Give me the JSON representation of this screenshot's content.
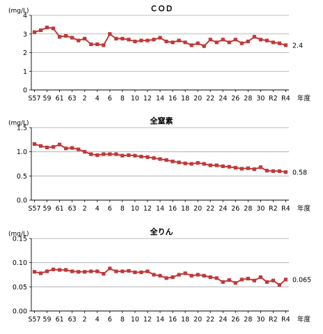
{
  "chart_data": [
    {
      "type": "line",
      "title": "ＣＯＤ",
      "ylabel": "(mg/L)",
      "xlabel": "年度",
      "ylim": [
        0,
        4
      ],
      "yticks": [
        0,
        1,
        2,
        3,
        4
      ],
      "ytick_labels": [
        "0",
        "1",
        "2",
        "3",
        "4"
      ],
      "grid": true,
      "end_label": "2.4",
      "series": [
        {
          "color": "#c0393a",
          "values": [
            3.1,
            3.2,
            3.35,
            3.3,
            2.85,
            2.9,
            2.8,
            2.65,
            2.75,
            2.45,
            2.45,
            2.4,
            3.0,
            2.75,
            2.75,
            2.7,
            2.6,
            2.65,
            2.65,
            2.7,
            2.8,
            2.6,
            2.55,
            2.65,
            2.55,
            2.4,
            2.5,
            2.35,
            2.7,
            2.55,
            2.7,
            2.55,
            2.7,
            2.5,
            2.6,
            2.85,
            2.7,
            2.65,
            2.55,
            2.5,
            2.4
          ]
        }
      ]
    },
    {
      "type": "line",
      "title": "全窒素",
      "ylabel": "(mg/L)",
      "xlabel": "年度",
      "ylim": [
        0,
        1.5
      ],
      "yticks": [
        0,
        0.5,
        1.0,
        1.5
      ],
      "ytick_labels": [
        "0.0",
        "0.5",
        "1.0",
        "1.5"
      ],
      "grid": true,
      "end_label": "0.58",
      "series": [
        {
          "color": "#c0393a",
          "values": [
            1.16,
            1.12,
            1.09,
            1.1,
            1.15,
            1.07,
            1.08,
            1.05,
            1.0,
            0.95,
            0.93,
            0.95,
            0.95,
            0.95,
            0.92,
            0.93,
            0.92,
            0.9,
            0.89,
            0.87,
            0.85,
            0.83,
            0.8,
            0.78,
            0.76,
            0.75,
            0.77,
            0.75,
            0.72,
            0.72,
            0.7,
            0.69,
            0.67,
            0.65,
            0.66,
            0.64,
            0.68,
            0.61,
            0.6,
            0.6,
            0.58
          ]
        }
      ]
    },
    {
      "type": "line",
      "title": "全りん",
      "ylabel": "(mg/L)",
      "xlabel": "年度",
      "ylim": [
        0,
        0.15
      ],
      "yticks": [
        0,
        0.05,
        0.1,
        0.15
      ],
      "ytick_labels": [
        "0.00",
        "0.05",
        "0.10",
        "0.15"
      ],
      "grid": true,
      "end_label": "0.065",
      "series": [
        {
          "color": "#c0393a",
          "values": [
            0.081,
            0.078,
            0.082,
            0.086,
            0.085,
            0.085,
            0.082,
            0.081,
            0.081,
            0.082,
            0.082,
            0.077,
            0.088,
            0.082,
            0.082,
            0.083,
            0.08,
            0.08,
            0.082,
            0.075,
            0.073,
            0.068,
            0.07,
            0.075,
            0.078,
            0.073,
            0.075,
            0.073,
            0.07,
            0.068,
            0.06,
            0.064,
            0.058,
            0.065,
            0.067,
            0.063,
            0.07,
            0.06,
            0.063,
            0.054,
            0.065
          ]
        }
      ]
    }
  ],
  "x_tick_labels": [
    "S57",
    "59",
    "61",
    "63",
    "2",
    "4",
    "6",
    "8",
    "10",
    "12",
    "14",
    "16",
    "18",
    "20",
    "22",
    "24",
    "26",
    "28",
    "30",
    "R2",
    "R4"
  ]
}
